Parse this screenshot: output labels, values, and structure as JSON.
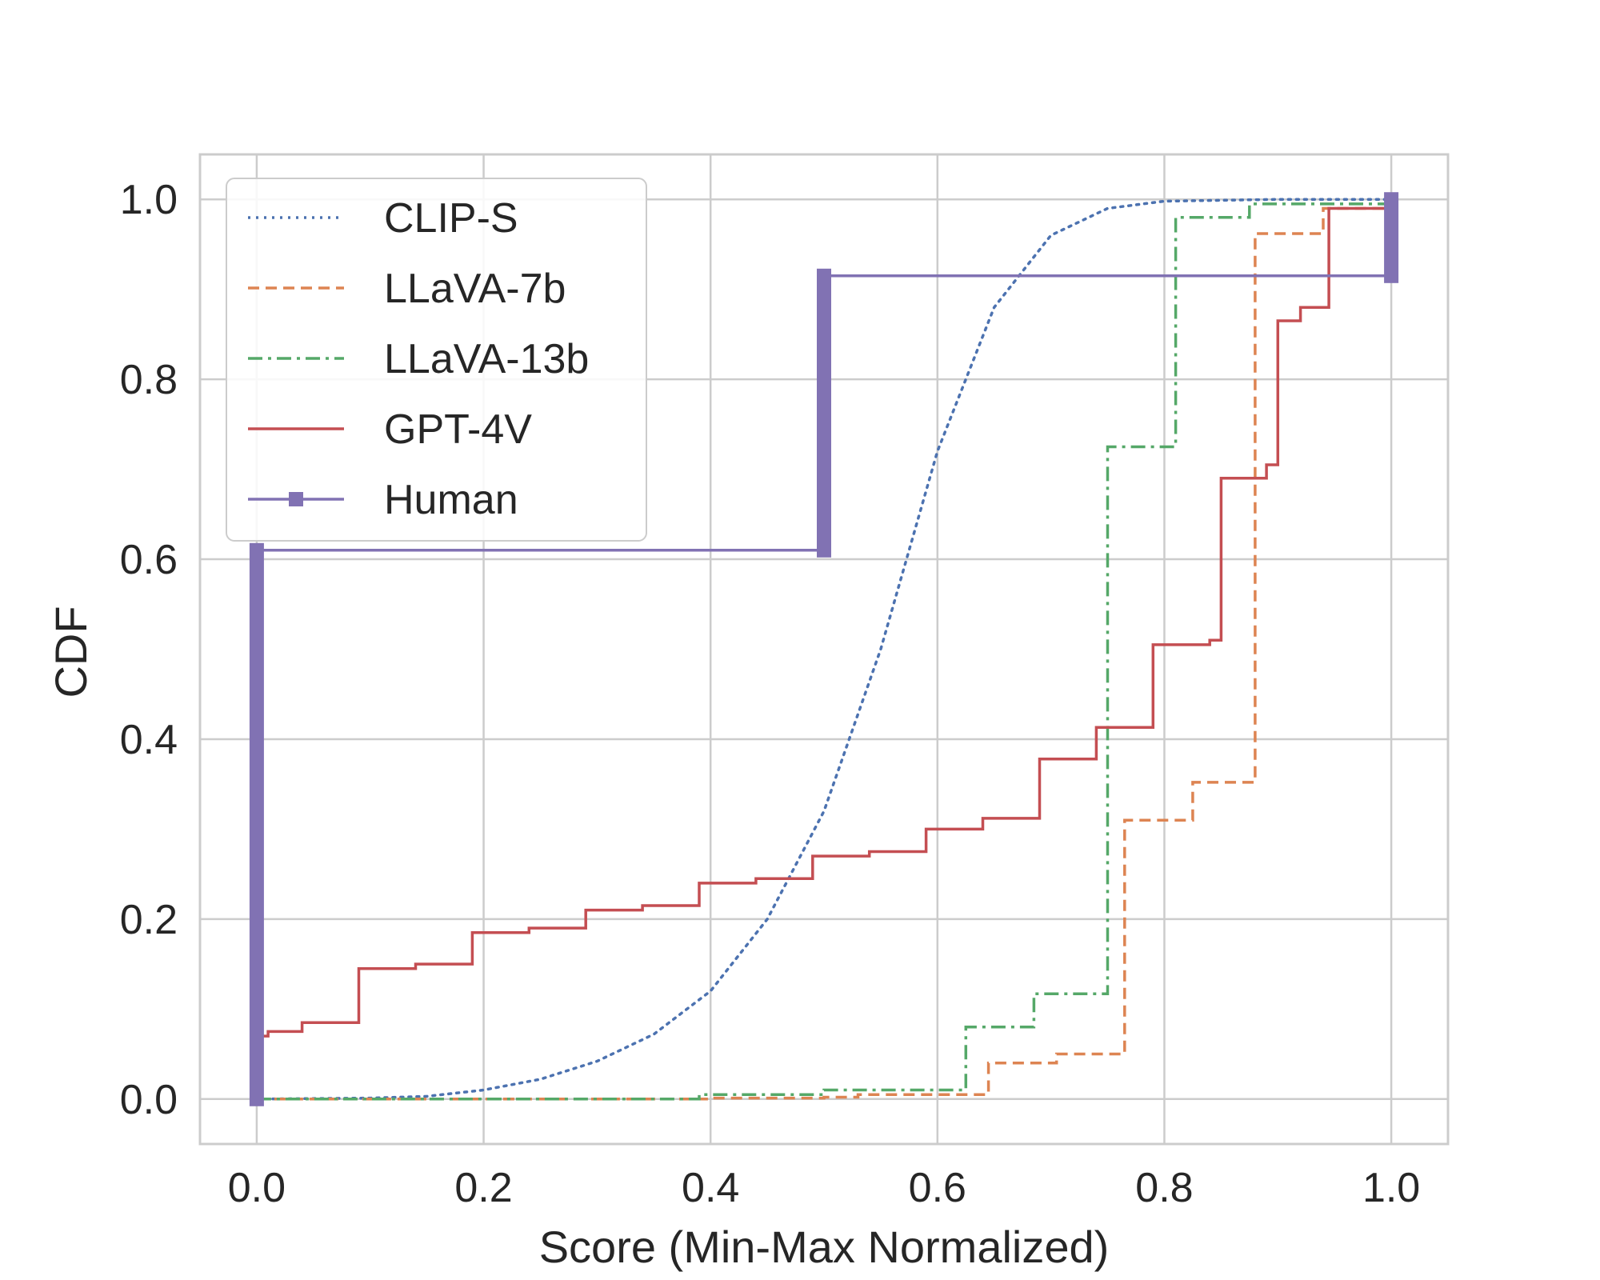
{
  "chart_data": {
    "type": "line",
    "xlabel": "Score (Min-Max Normalized)",
    "ylabel": "CDF",
    "xlim": [
      -0.05,
      1.05
    ],
    "ylim": [
      -0.05,
      1.05
    ],
    "xticks": [
      0.0,
      0.2,
      0.4,
      0.6,
      0.8,
      1.0
    ],
    "xtick_labels": [
      "0.0",
      "0.2",
      "0.4",
      "0.6",
      "0.8",
      "1.0"
    ],
    "yticks": [
      0.0,
      0.2,
      0.4,
      0.6,
      0.8,
      1.0
    ],
    "ytick_labels": [
      "0.0",
      "0.2",
      "0.4",
      "0.6",
      "0.8",
      "1.0"
    ],
    "grid": true,
    "legend_position": "top-left",
    "series": [
      {
        "name": "CLIP-S",
        "color": "#4c72b0",
        "style": "dotted",
        "points": [
          [
            0.0,
            0.0
          ],
          [
            0.1,
            0.001
          ],
          [
            0.15,
            0.003
          ],
          [
            0.2,
            0.01
          ],
          [
            0.25,
            0.022
          ],
          [
            0.3,
            0.042
          ],
          [
            0.35,
            0.072
          ],
          [
            0.4,
            0.12
          ],
          [
            0.45,
            0.2
          ],
          [
            0.5,
            0.32
          ],
          [
            0.55,
            0.5
          ],
          [
            0.6,
            0.72
          ],
          [
            0.65,
            0.88
          ],
          [
            0.7,
            0.96
          ],
          [
            0.75,
            0.99
          ],
          [
            0.8,
            0.998
          ],
          [
            0.9,
            1.0
          ],
          [
            1.0,
            1.0
          ]
        ]
      },
      {
        "name": "LLaVA-7b",
        "color": "#dd8452",
        "style": "dashed",
        "points": [
          [
            0.0,
            0.0
          ],
          [
            0.4,
            0.0
          ],
          [
            0.4,
            0.001
          ],
          [
            0.5,
            0.001
          ],
          [
            0.5,
            0.002
          ],
          [
            0.53,
            0.002
          ],
          [
            0.53,
            0.005
          ],
          [
            0.645,
            0.005
          ],
          [
            0.645,
            0.04
          ],
          [
            0.705,
            0.04
          ],
          [
            0.705,
            0.05
          ],
          [
            0.765,
            0.05
          ],
          [
            0.765,
            0.31
          ],
          [
            0.825,
            0.31
          ],
          [
            0.825,
            0.352
          ],
          [
            0.88,
            0.352
          ],
          [
            0.88,
            0.962
          ],
          [
            0.94,
            0.962
          ],
          [
            0.94,
            0.99
          ],
          [
            1.0,
            0.99
          ]
        ]
      },
      {
        "name": "LLaVA-13b",
        "color": "#55a868",
        "style": "dashdot",
        "points": [
          [
            0.0,
            0.0
          ],
          [
            0.39,
            0.0
          ],
          [
            0.39,
            0.005
          ],
          [
            0.5,
            0.005
          ],
          [
            0.5,
            0.01
          ],
          [
            0.625,
            0.01
          ],
          [
            0.625,
            0.08
          ],
          [
            0.685,
            0.08
          ],
          [
            0.685,
            0.117
          ],
          [
            0.75,
            0.117
          ],
          [
            0.75,
            0.725
          ],
          [
            0.81,
            0.725
          ],
          [
            0.81,
            0.98
          ],
          [
            0.875,
            0.98
          ],
          [
            0.875,
            0.995
          ],
          [
            1.0,
            0.995
          ]
        ]
      },
      {
        "name": "GPT-4V",
        "color": "#c44e52",
        "style": "solid",
        "points": [
          [
            0.0,
            0.07
          ],
          [
            0.01,
            0.07
          ],
          [
            0.01,
            0.075
          ],
          [
            0.04,
            0.075
          ],
          [
            0.04,
            0.085
          ],
          [
            0.09,
            0.085
          ],
          [
            0.09,
            0.145
          ],
          [
            0.14,
            0.145
          ],
          [
            0.14,
            0.15
          ],
          [
            0.19,
            0.15
          ],
          [
            0.19,
            0.185
          ],
          [
            0.24,
            0.185
          ],
          [
            0.24,
            0.19
          ],
          [
            0.29,
            0.19
          ],
          [
            0.29,
            0.21
          ],
          [
            0.34,
            0.21
          ],
          [
            0.34,
            0.215
          ],
          [
            0.39,
            0.215
          ],
          [
            0.39,
            0.24
          ],
          [
            0.44,
            0.24
          ],
          [
            0.44,
            0.245
          ],
          [
            0.49,
            0.245
          ],
          [
            0.49,
            0.27
          ],
          [
            0.54,
            0.27
          ],
          [
            0.54,
            0.275
          ],
          [
            0.59,
            0.275
          ],
          [
            0.59,
            0.3
          ],
          [
            0.64,
            0.3
          ],
          [
            0.64,
            0.312
          ],
          [
            0.69,
            0.312
          ],
          [
            0.69,
            0.378
          ],
          [
            0.74,
            0.378
          ],
          [
            0.74,
            0.413
          ],
          [
            0.79,
            0.413
          ],
          [
            0.79,
            0.505
          ],
          [
            0.84,
            0.505
          ],
          [
            0.84,
            0.51
          ],
          [
            0.85,
            0.51
          ],
          [
            0.85,
            0.69
          ],
          [
            0.89,
            0.69
          ],
          [
            0.89,
            0.705
          ],
          [
            0.9,
            0.705
          ],
          [
            0.9,
            0.865
          ],
          [
            0.92,
            0.865
          ],
          [
            0.92,
            0.88
          ],
          [
            0.945,
            0.88
          ],
          [
            0.945,
            0.99
          ],
          [
            1.0,
            0.99
          ]
        ]
      },
      {
        "name": "Human",
        "color": "#8172b3",
        "style": "solid-marker",
        "points": [
          [
            0.0,
            0.0
          ],
          [
            0.0,
            0.61
          ],
          [
            0.5,
            0.61
          ],
          [
            0.5,
            0.915
          ],
          [
            1.0,
            0.915
          ],
          [
            1.0,
            1.0
          ]
        ],
        "marker_bars": [
          [
            0.0,
            0.0,
            0.61
          ],
          [
            0.5,
            0.61,
            0.915
          ],
          [
            1.0,
            0.915,
            1.0
          ]
        ]
      }
    ]
  }
}
